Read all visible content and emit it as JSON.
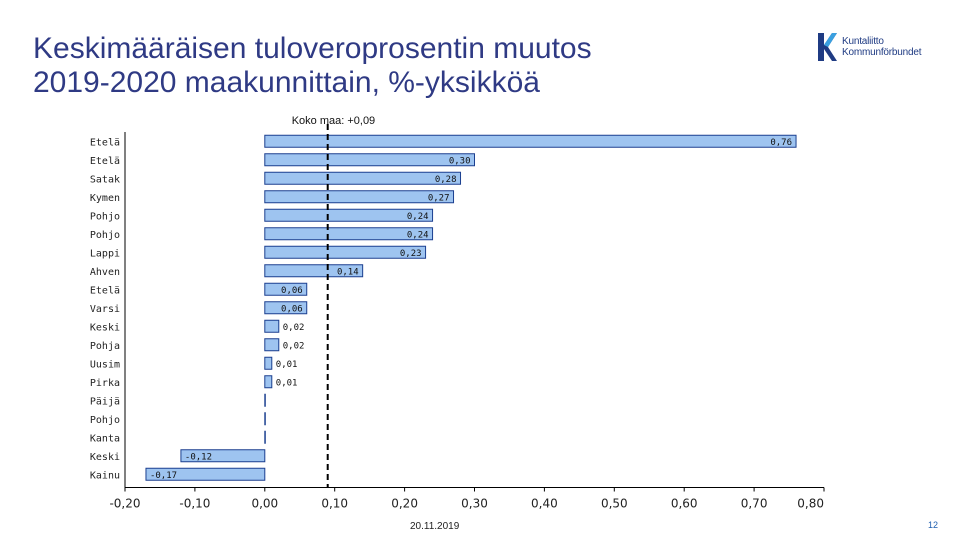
{
  "slide": {
    "title_line1": "Keskimääräisen tuloveroprosentin muutos",
    "title_line2": "2019-2020 maakunnittain, %-yksikköä",
    "logo_line1": "Kuntaliitto",
    "logo_line2": "Kommunförbundet",
    "date": "20.11.2019",
    "page": "12"
  },
  "colors": {
    "title": "#2f3a84",
    "bar_fill": "#9ec4f0",
    "bar_stroke": "#1b3f8f",
    "reference_line": "#000000",
    "logo": "#1f3b83"
  },
  "chart_data": {
    "type": "bar",
    "orientation": "horizontal",
    "categories": [
      "Etelä-Pohjanmaa",
      "Etelä-Savo",
      "Satakunta",
      "Kymenlaakso",
      "Pohjois-Pohjanmaa",
      "Pohjois-Savo",
      "Lappi",
      "Ahvenanmaa",
      "Etelä-Karjala",
      "Varsinais-Suomi",
      "Keski-Suomi",
      "Pohjanmaa",
      "Uusimaa",
      "Pirkanmaa",
      "Päijät-Häme",
      "Pohjois-Karjala",
      "Kanta-Häme",
      "Keski-Pohjanmaa",
      "Kainuu"
    ],
    "values": [
      0.76,
      0.3,
      0.28,
      0.27,
      0.24,
      0.24,
      0.23,
      0.14,
      0.06,
      0.06,
      0.02,
      0.02,
      0.01,
      0.01,
      0.0,
      0.0,
      0.0,
      -0.12,
      -0.17
    ],
    "data_labels": [
      "0,76",
      "0,30",
      "0,28",
      "0,27",
      "0,24",
      "0,24",
      "0,23",
      "0,14",
      "0,06",
      "0,06",
      "0,02",
      "0,02",
      "0,01",
      "0,01",
      "",
      "",
      "",
      "-0,12",
      "-0,17"
    ],
    "xlim": [
      -0.2,
      0.8
    ],
    "xticks": [
      "-0,20",
      "-0,10",
      "0,00",
      "0,10",
      "0,20",
      "0,30",
      "0,40",
      "0,50",
      "0,60",
      "0,70",
      "0,80"
    ],
    "reference_line": {
      "value": 0.09,
      "label": "Koko maa: +0,09"
    },
    "grid": false
  }
}
